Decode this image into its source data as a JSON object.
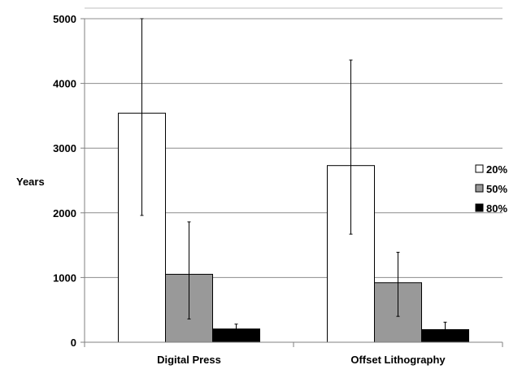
{
  "chart_data": {
    "type": "bar",
    "title": "",
    "xlabel": "",
    "ylabel": "Years",
    "ylim": [
      0,
      5000
    ],
    "yticks": [
      0,
      1000,
      2000,
      3000,
      4000,
      5000
    ],
    "grid": true,
    "legend_position": "right",
    "categories": [
      "Digital Press",
      "Offset Lithography"
    ],
    "series": [
      {
        "name": "20%",
        "color": "#ffffff",
        "values": [
          3540,
          2730
        ],
        "error_low": [
          1960,
          1670
        ],
        "error_high": [
          5000,
          4360
        ]
      },
      {
        "name": "50%",
        "color": "#999999",
        "values": [
          1050,
          920
        ],
        "error_low": [
          360,
          400
        ],
        "error_high": [
          1860,
          1390
        ]
      },
      {
        "name": "80%",
        "color": "#000000",
        "values": [
          205,
          195
        ],
        "error_low": [
          130,
          80
        ],
        "error_high": [
          280,
          310
        ]
      }
    ]
  }
}
